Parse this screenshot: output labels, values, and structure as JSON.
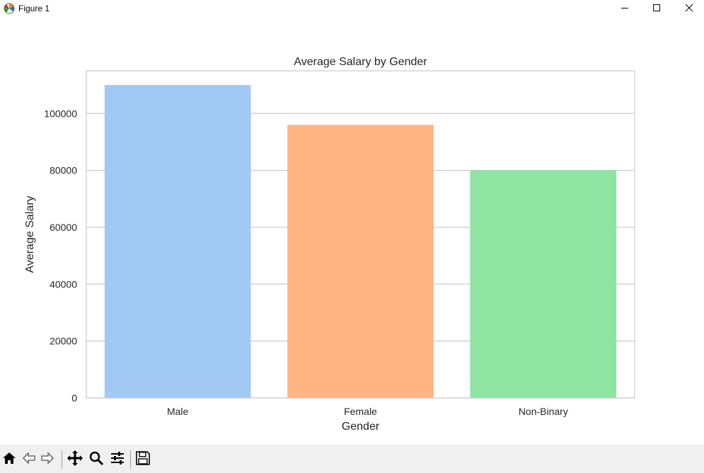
{
  "window": {
    "title": "Figure 1",
    "icon": "matplotlib-icon",
    "controls": [
      "minimize-icon",
      "maximize-icon",
      "close-icon"
    ]
  },
  "toolbar": {
    "buttons": [
      "home-icon",
      "back-icon",
      "forward-icon",
      "pan-icon",
      "zoom-icon",
      "configure-subplots-icon",
      "save-icon"
    ]
  },
  "chart_data": {
    "type": "bar",
    "title": "Average Salary by Gender",
    "xlabel": "Gender",
    "ylabel": "Average Salary",
    "categories": [
      "Male",
      "Female",
      "Non-Binary"
    ],
    "values": [
      110000,
      96000,
      80000
    ],
    "colors": [
      "#a1c9f4",
      "#ffb482",
      "#8de5a1"
    ],
    "ylim": [
      0,
      115000
    ],
    "yticks": [
      0,
      20000,
      40000,
      60000,
      80000,
      100000
    ],
    "ytick_labels": [
      "0",
      "20000",
      "40000",
      "60000",
      "80000",
      "100000"
    ],
    "grid": "horizontal",
    "grid_color": "#cccccc",
    "spine_color": "#cccccc"
  }
}
